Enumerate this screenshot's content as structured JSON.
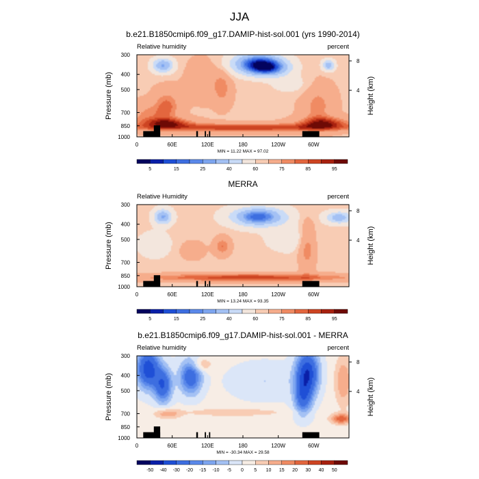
{
  "figure": {
    "title": "JJA"
  },
  "chart_data": [
    {
      "type": "heatmap",
      "title": "b.e21.B1850cmip6.f09_g17.DAMIP-hist-sol.001 (yrs 1990-2014)",
      "left_label": "Relative humidity",
      "right_label": "percent",
      "xlabel": "",
      "ylabel": "Pressure (mb)",
      "y2label": "Height (km)",
      "x_ticks": [
        "0",
        "60E",
        "120E",
        "180",
        "120W",
        "60W"
      ],
      "x_tick_values": [
        0,
        60,
        120,
        180,
        240,
        300
      ],
      "xlim": [
        0,
        360
      ],
      "y_ticks": [
        "300",
        "400",
        "500",
        "700",
        "850",
        "1000"
      ],
      "y_tick_values": [
        300,
        400,
        500,
        700,
        850,
        1000
      ],
      "ylim": [
        1000,
        300
      ],
      "y_scale": "log",
      "y2_ticks": [
        "8",
        "4"
      ],
      "stats": "MIN = 11.22  MAX = 97.02",
      "colorbar": {
        "levels": [
          5,
          10,
          15,
          20,
          25,
          30,
          40,
          50,
          60,
          65,
          75,
          80,
          85,
          90,
          95
        ],
        "labels": [
          "5",
          "15",
          "25",
          "40",
          "60",
          "75",
          "85",
          "95"
        ],
        "label_after_boxes": [
          1,
          3,
          5,
          7,
          9,
          11,
          13,
          15
        ],
        "colors": [
          "#03035e",
          "#0a1fa8",
          "#1f4fd6",
          "#3d6ee0",
          "#5b89ea",
          "#7ea6f0",
          "#a4c1f4",
          "#c9dbf7",
          "#f3e6dd",
          "#f8ccb4",
          "#f6ad8c",
          "#f08b63",
          "#e3663e",
          "#cd4422",
          "#a8210f",
          "#6e0a05"
        ]
      }
    },
    {
      "type": "heatmap",
      "title": "MERRA",
      "left_label": "Relative Humidity",
      "right_label": "percent",
      "xlabel": "",
      "ylabel": "Pressure (mb)",
      "y2label": "Height (km)",
      "x_ticks": [
        "0",
        "60E",
        "120E",
        "180",
        "120W",
        "60W"
      ],
      "x_tick_values": [
        0,
        60,
        120,
        180,
        240,
        300
      ],
      "xlim": [
        0,
        360
      ],
      "y_ticks": [
        "300",
        "400",
        "500",
        "700",
        "850",
        "1000"
      ],
      "y_tick_values": [
        300,
        400,
        500,
        700,
        850,
        1000
      ],
      "ylim": [
        1000,
        300
      ],
      "y_scale": "log",
      "y2_ticks": [
        "8",
        "4"
      ],
      "stats": "MIN = 13.24  MAX = 93.35",
      "colorbar": {
        "levels": [
          5,
          10,
          15,
          20,
          25,
          30,
          40,
          50,
          60,
          65,
          75,
          80,
          85,
          90,
          95
        ],
        "labels": [
          "5",
          "15",
          "25",
          "40",
          "60",
          "75",
          "85",
          "95"
        ],
        "label_after_boxes": [
          1,
          3,
          5,
          7,
          9,
          11,
          13,
          15
        ],
        "colors": [
          "#03035e",
          "#0a1fa8",
          "#1f4fd6",
          "#3d6ee0",
          "#5b89ea",
          "#7ea6f0",
          "#a4c1f4",
          "#c9dbf7",
          "#f3e6dd",
          "#f8ccb4",
          "#f6ad8c",
          "#f08b63",
          "#e3663e",
          "#cd4422",
          "#a8210f",
          "#6e0a05"
        ]
      }
    },
    {
      "type": "heatmap",
      "title": "b.e21.B1850cmip6.f09_g17.DAMIP-hist-sol.001 - MERRA",
      "left_label": "Relative humidity",
      "right_label": "percent",
      "xlabel": "",
      "ylabel": "Pressure (mb)",
      "y2label": "Height (km)",
      "x_ticks": [
        "0",
        "60E",
        "120E",
        "180",
        "120W",
        "60W"
      ],
      "x_tick_values": [
        0,
        60,
        120,
        180,
        240,
        300
      ],
      "xlim": [
        0,
        360
      ],
      "y_ticks": [
        "300",
        "400",
        "500",
        "700",
        "850",
        "1000"
      ],
      "y_tick_values": [
        300,
        400,
        500,
        700,
        850,
        1000
      ],
      "ylim": [
        1000,
        300
      ],
      "y_scale": "log",
      "y2_ticks": [
        "8",
        "4"
      ],
      "stats": "MIN = -30.34  MAX = 29.58",
      "colorbar": {
        "levels": [
          -50,
          -40,
          -30,
          -20,
          -15,
          -10,
          -5,
          0,
          5,
          10,
          15,
          20,
          30,
          40,
          50
        ],
        "labels": [
          "-50",
          "-40",
          "-30",
          "-20",
          "-15",
          "-10",
          "-5",
          "0",
          "5",
          "10",
          "15",
          "20",
          "30",
          "40",
          "50"
        ],
        "label_after_boxes": [
          1,
          2,
          3,
          4,
          5,
          6,
          7,
          8,
          9,
          10,
          11,
          12,
          13,
          14,
          15
        ],
        "colors": [
          "#03035e",
          "#0a1fa8",
          "#1f4fd6",
          "#3d6ee0",
          "#5b89ea",
          "#7ea6f0",
          "#a4c1f4",
          "#dbe6f8",
          "#f7ede5",
          "#f8ccb4",
          "#f6ad8c",
          "#f08b63",
          "#e3663e",
          "#cd4422",
          "#a8210f",
          "#6e0a05"
        ]
      }
    }
  ]
}
